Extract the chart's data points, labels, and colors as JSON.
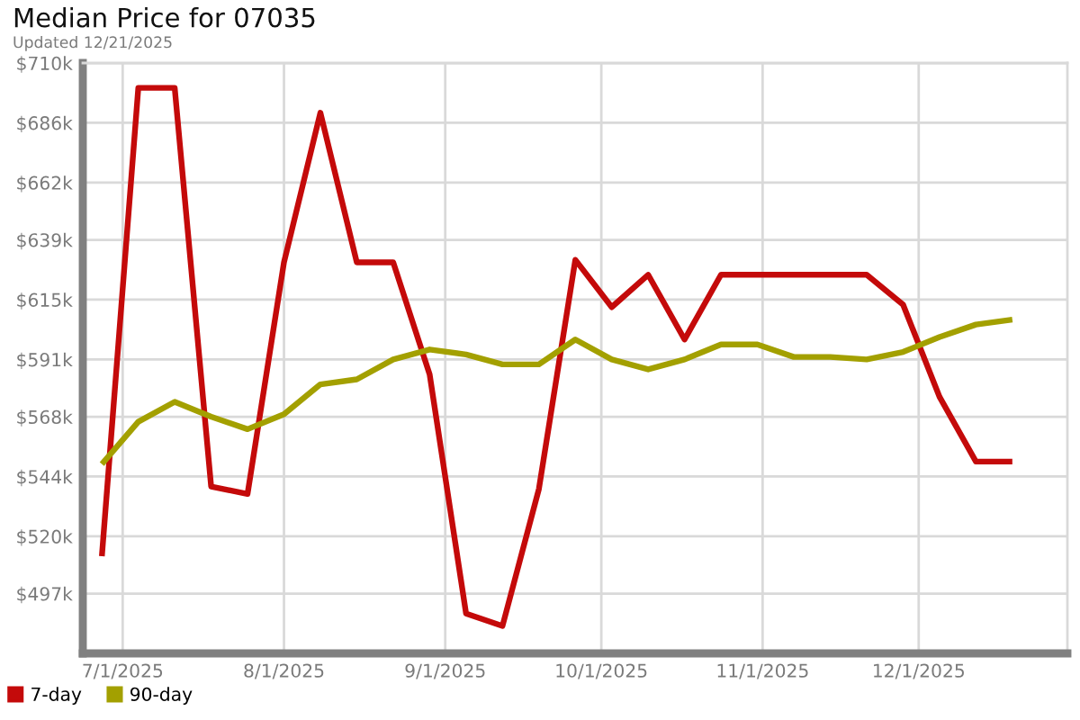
{
  "chart_data": {
    "type": "line",
    "title": "Median Price for 07035",
    "subtitle": "Updated 12/21/2025",
    "x": [
      "2025-06-27",
      "2025-07-04",
      "2025-07-11",
      "2025-07-18",
      "2025-07-25",
      "2025-08-01",
      "2025-08-08",
      "2025-08-15",
      "2025-08-22",
      "2025-08-29",
      "2025-09-05",
      "2025-09-12",
      "2025-09-19",
      "2025-09-26",
      "2025-10-03",
      "2025-10-10",
      "2025-10-17",
      "2025-10-24",
      "2025-10-31",
      "2025-11-07",
      "2025-11-14",
      "2025-11-21",
      "2025-11-28",
      "2025-12-05",
      "2025-12-12",
      "2025-12-19"
    ],
    "series": [
      {
        "name": "7-day",
        "color": "#c40a0a",
        "values": [
          512,
          700,
          700,
          540,
          537,
          630,
          690,
          630,
          630,
          585,
          489,
          484,
          539,
          631,
          612,
          625,
          599,
          625,
          625,
          625,
          625,
          625,
          613,
          576,
          550,
          550
        ]
      },
      {
        "name": "90-day",
        "color": "#a3a000",
        "values": [
          549,
          566,
          574,
          568,
          563,
          569,
          581,
          583,
          591,
          595,
          593,
          589,
          589,
          599,
          591,
          587,
          591,
          597,
          597,
          592,
          592,
          591,
          594,
          600,
          605,
          607
        ]
      }
    ],
    "xlim": [
      "2025-06-23T08:00",
      "2025-12-29T14:00"
    ],
    "xticks": [
      {
        "value": "2025-07-01",
        "label": "7/1/2025"
      },
      {
        "value": "2025-08-01",
        "label": "8/1/2025"
      },
      {
        "value": "2025-09-01",
        "label": "9/1/2025"
      },
      {
        "value": "2025-10-01",
        "label": "10/1/2025"
      },
      {
        "value": "2025-11-01",
        "label": "11/1/2025"
      },
      {
        "value": "2025-12-01",
        "label": "12/1/2025"
      }
    ],
    "ylim": [
      473,
      710
    ],
    "yticks": [
      {
        "value": 497,
        "label": "$497k"
      },
      {
        "value": 520,
        "label": "$520k"
      },
      {
        "value": 544,
        "label": "$544k"
      },
      {
        "value": 568,
        "label": "$568k"
      },
      {
        "value": 591,
        "label": "$591k"
      },
      {
        "value": 615,
        "label": "$615k"
      },
      {
        "value": 639,
        "label": "$639k"
      },
      {
        "value": 662,
        "label": "$662k"
      },
      {
        "value": 686,
        "label": "$686k"
      },
      {
        "value": 710,
        "label": "$710k"
      }
    ],
    "grid": true,
    "legend": "bottom left"
  }
}
